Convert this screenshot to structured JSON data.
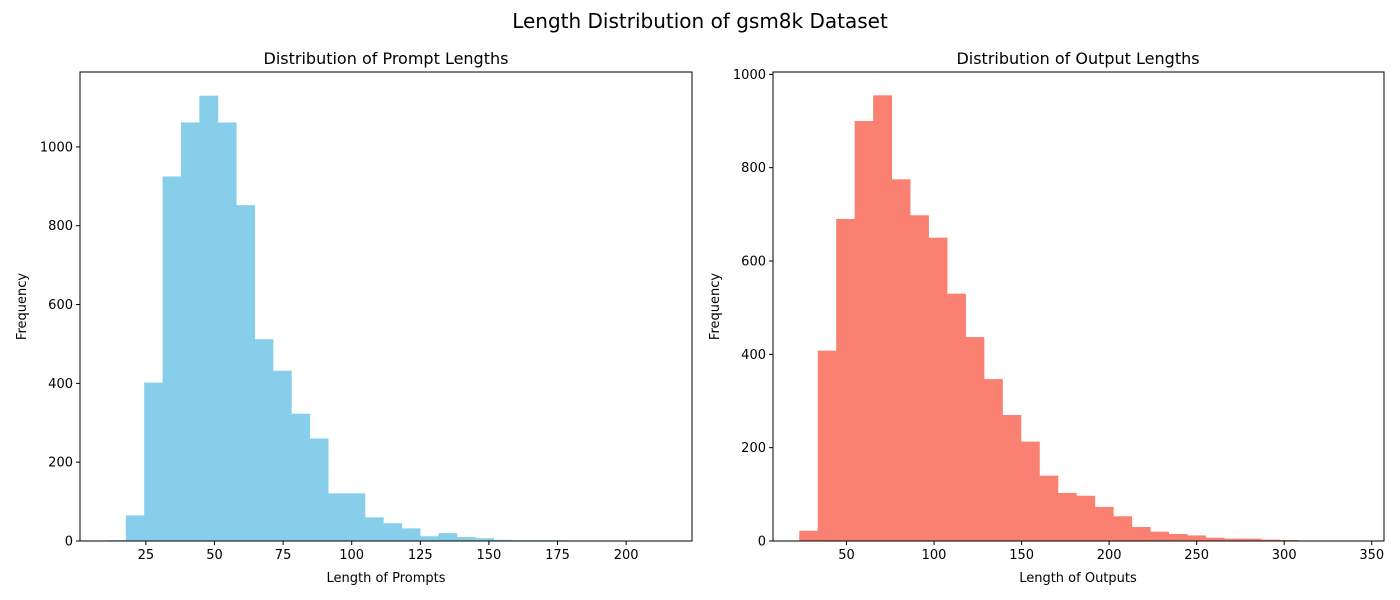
{
  "figure": {
    "title": "Length Distribution of gsm8k Dataset",
    "background": "#ffffff"
  },
  "chart_data": [
    {
      "type": "bar",
      "subtype": "histogram",
      "title": "Distribution of Prompt Lengths",
      "xlabel": "Length of Prompts",
      "ylabel": "Frequency",
      "color": "#87ceeb",
      "xlim": [
        1,
        224
      ],
      "ylim": [
        0,
        1190
      ],
      "xticks": [
        25,
        50,
        75,
        100,
        125,
        150,
        175,
        200
      ],
      "yticks": [
        0,
        200,
        400,
        600,
        800,
        1000
      ],
      "grid": false,
      "bin_width": 6.7,
      "bin_edges": [
        11,
        17.7,
        24.4,
        31.1,
        37.8,
        44.5,
        51.2,
        57.9,
        64.6,
        71.3,
        78,
        84.7,
        91.4,
        98.1,
        104.8,
        111.5,
        118.2,
        124.9,
        131.6,
        138.3,
        145,
        151.7,
        158.4,
        165.1,
        171.8,
        178.5,
        185.2,
        191.9,
        198.6,
        205.3,
        212
      ],
      "values": [
        2,
        65,
        402,
        925,
        1062,
        1130,
        1062,
        852,
        512,
        432,
        323,
        260,
        121,
        121,
        60,
        45,
        32,
        12,
        20,
        10,
        7,
        3,
        2,
        2,
        2,
        0,
        0,
        0,
        0,
        1
      ]
    },
    {
      "type": "bar",
      "subtype": "histogram",
      "title": "Distribution of Output Lengths",
      "xlabel": "Length of Outputs",
      "ylabel": "Frequency",
      "color": "#fa8072",
      "xlim": [
        8,
        357
      ],
      "ylim": [
        0,
        1005
      ],
      "xticks": [
        50,
        100,
        150,
        200,
        250,
        300,
        350
      ],
      "yticks": [
        0,
        200,
        400,
        600,
        800,
        1000
      ],
      "grid": false,
      "bin_width": 10.55,
      "bin_edges": [
        23,
        33.55,
        44.1,
        54.65,
        65.2,
        75.75,
        86.3,
        96.85,
        107.4,
        117.95,
        128.5,
        139.05,
        149.6,
        160.15,
        170.7,
        181.25,
        191.8,
        202.35,
        212.9,
        223.45,
        234,
        244.55,
        255.1,
        265.65,
        276.2,
        286.75,
        297.3,
        307.85,
        318.4,
        328.95,
        339.5
      ],
      "values": [
        22,
        408,
        690,
        900,
        955,
        775,
        698,
        650,
        530,
        437,
        347,
        270,
        213,
        140,
        103,
        97,
        73,
        53,
        30,
        20,
        15,
        12,
        7,
        5,
        5,
        3,
        2,
        1,
        1,
        1
      ]
    }
  ]
}
